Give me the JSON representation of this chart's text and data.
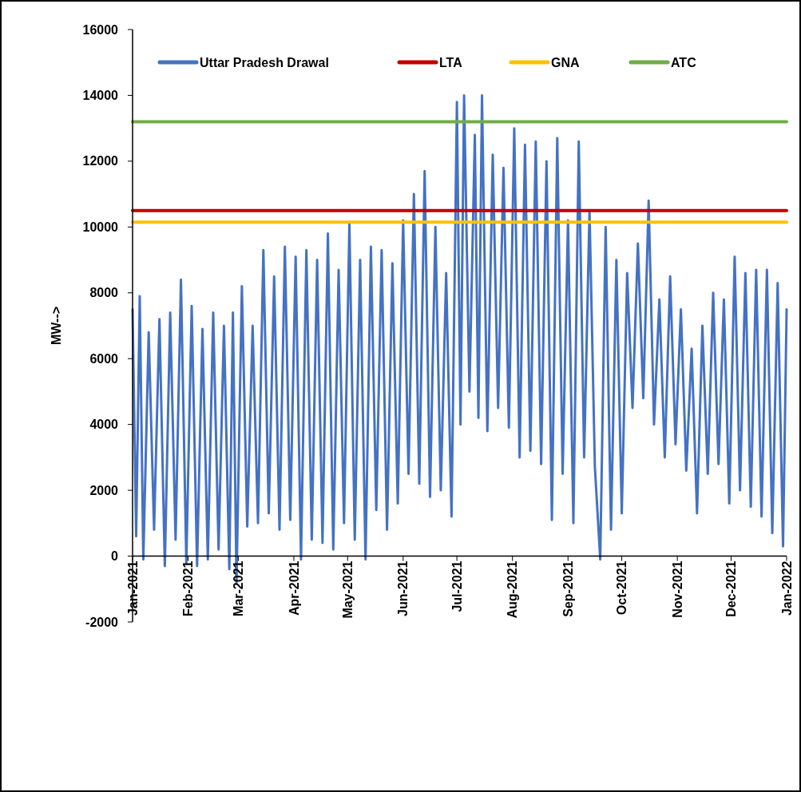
{
  "chart_data": {
    "type": "line",
    "ylabel": "MW-->",
    "xlim": [
      "2021-01-01",
      "2022-01-01"
    ],
    "xticks": [
      {
        "value": "2021-01-01",
        "label": "Jan-2021"
      },
      {
        "value": "2021-02-01",
        "label": "Feb-2021"
      },
      {
        "value": "2021-03-01",
        "label": "Mar-2021"
      },
      {
        "value": "2021-04-01",
        "label": "Apr-2021"
      },
      {
        "value": "2021-05-01",
        "label": "May-2021"
      },
      {
        "value": "2021-06-01",
        "label": "Jun-2021"
      },
      {
        "value": "2021-07-01",
        "label": "Jul-2021"
      },
      {
        "value": "2021-08-01",
        "label": "Aug-2021"
      },
      {
        "value": "2021-09-01",
        "label": "Sep-2021"
      },
      {
        "value": "2021-10-01",
        "label": "Oct-2021"
      },
      {
        "value": "2021-11-01",
        "label": "Nov-2021"
      },
      {
        "value": "2021-12-01",
        "label": "Dec-2021"
      },
      {
        "value": "2022-01-01",
        "label": "Jan-2022"
      }
    ],
    "ylim": [
      -2000,
      16000
    ],
    "yticks": [
      -2000,
      0,
      2000,
      4000,
      6000,
      8000,
      10000,
      12000,
      14000,
      16000
    ],
    "grid": false,
    "legend": "top",
    "marker": "none",
    "line_style": "solid",
    "series": [
      {
        "name": "Uttar Pradesh Drawal",
        "color": "#4472c4",
        "x": [
          "2021-01-01",
          "2021-01-03",
          "2021-01-05",
          "2021-01-07",
          "2021-01-10",
          "2021-01-13",
          "2021-01-16",
          "2021-01-19",
          "2021-01-22",
          "2021-01-25",
          "2021-01-28",
          "2021-01-31",
          "2021-02-03",
          "2021-02-06",
          "2021-02-09",
          "2021-02-12",
          "2021-02-15",
          "2021-02-18",
          "2021-02-21",
          "2021-02-24",
          "2021-02-26",
          "2021-02-28",
          "2021-03-03",
          "2021-03-06",
          "2021-03-09",
          "2021-03-12",
          "2021-03-15",
          "2021-03-18",
          "2021-03-21",
          "2021-03-24",
          "2021-03-27",
          "2021-03-30",
          "2021-04-02",
          "2021-04-05",
          "2021-04-08",
          "2021-04-11",
          "2021-04-14",
          "2021-04-17",
          "2021-04-20",
          "2021-04-23",
          "2021-04-26",
          "2021-04-29",
          "2021-05-02",
          "2021-05-05",
          "2021-05-08",
          "2021-05-11",
          "2021-05-14",
          "2021-05-17",
          "2021-05-20",
          "2021-05-23",
          "2021-05-26",
          "2021-05-29",
          "2021-06-01",
          "2021-06-04",
          "2021-06-07",
          "2021-06-10",
          "2021-06-13",
          "2021-06-16",
          "2021-06-19",
          "2021-06-22",
          "2021-06-25",
          "2021-06-28",
          "2021-07-01",
          "2021-07-03",
          "2021-07-05",
          "2021-07-08",
          "2021-07-11",
          "2021-07-13",
          "2021-07-15",
          "2021-07-18",
          "2021-07-21",
          "2021-07-24",
          "2021-07-27",
          "2021-07-30",
          "2021-08-02",
          "2021-08-05",
          "2021-08-08",
          "2021-08-11",
          "2021-08-14",
          "2021-08-17",
          "2021-08-20",
          "2021-08-23",
          "2021-08-26",
          "2021-08-29",
          "2021-09-01",
          "2021-09-04",
          "2021-09-07",
          "2021-09-10",
          "2021-09-13",
          "2021-09-16",
          "2021-09-19",
          "2021-09-22",
          "2021-09-25",
          "2021-09-28",
          "2021-10-01",
          "2021-10-04",
          "2021-10-07",
          "2021-10-10",
          "2021-10-13",
          "2021-10-16",
          "2021-10-19",
          "2021-10-22",
          "2021-10-25",
          "2021-10-28",
          "2021-10-31",
          "2021-11-03",
          "2021-11-06",
          "2021-11-09",
          "2021-11-12",
          "2021-11-15",
          "2021-11-18",
          "2021-11-21",
          "2021-11-24",
          "2021-11-27",
          "2021-11-30",
          "2021-12-03",
          "2021-12-06",
          "2021-12-09",
          "2021-12-12",
          "2021-12-15",
          "2021-12-18",
          "2021-12-21",
          "2021-12-24",
          "2021-12-27",
          "2021-12-30",
          "2022-01-01"
        ],
        "values": [
          7500,
          600,
          7900,
          -100,
          6800,
          800,
          7200,
          -300,
          7400,
          500,
          8400,
          -200,
          7600,
          -300,
          6900,
          -100,
          7400,
          200,
          7000,
          -400,
          7400,
          -800,
          8200,
          900,
          7000,
          1000,
          9300,
          1300,
          8500,
          800,
          9400,
          1100,
          9100,
          -100,
          9300,
          500,
          9000,
          400,
          9800,
          200,
          8700,
          1000,
          10100,
          500,
          9000,
          -100,
          9400,
          1400,
          9300,
          800,
          8900,
          1600,
          10200,
          2500,
          11000,
          2200,
          11700,
          1800,
          10000,
          2000,
          8600,
          1200,
          13800,
          4000,
          14000,
          5000,
          12800,
          4200,
          14000,
          3800,
          12200,
          4500,
          11800,
          3900,
          13000,
          3000,
          12500,
          3200,
          12600,
          2800,
          12000,
          1100,
          12700,
          2500,
          10200,
          1000,
          12600,
          3000,
          10500,
          2700,
          -100,
          10000,
          800,
          9000,
          1300,
          8600,
          4500,
          9500,
          4800,
          10800,
          4000,
          7800,
          3000,
          8500,
          3400,
          7500,
          2600,
          6300,
          1300,
          7000,
          2500,
          8000,
          2800,
          7800,
          1600,
          9100,
          2000,
          8600,
          1500,
          8700,
          1200,
          8700,
          700,
          8300,
          300,
          7500
        ]
      },
      {
        "name": "LTA",
        "color": "#c00000",
        "x": [
          "2021-01-01",
          "2022-01-01"
        ],
        "values": [
          10500,
          10500
        ]
      },
      {
        "name": "GNA",
        "color": "#ffc000",
        "x": [
          "2021-01-01",
          "2022-01-01"
        ],
        "values": [
          10150,
          10150
        ]
      },
      {
        "name": "ATC",
        "color": "#70ad47",
        "x": [
          "2021-01-01",
          "2022-01-01"
        ],
        "values": [
          13200,
          13200
        ]
      }
    ]
  }
}
